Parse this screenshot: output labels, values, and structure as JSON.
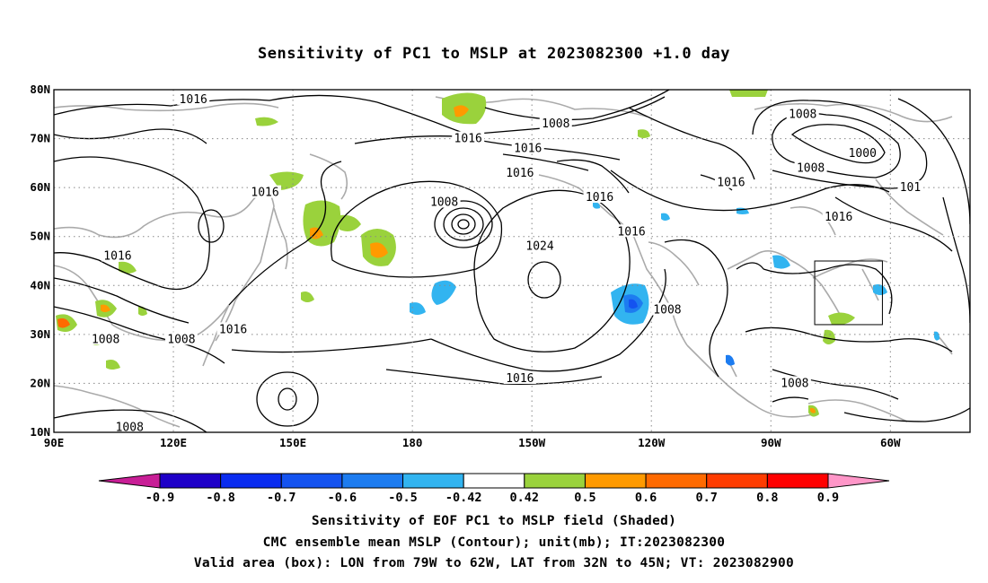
{
  "title": "Sensitivity of PC1 to MSLP at 2023082300 +1.0 day",
  "map": {
    "lat_labels": [
      "80N",
      "70N",
      "60N",
      "50N",
      "40N",
      "30N",
      "20N",
      "10N"
    ],
    "lon_labels": [
      "90E",
      "120E",
      "150E",
      "180",
      "150W",
      "120W",
      "90W",
      "60W"
    ],
    "contour_labels": [
      {
        "text": "1016",
        "lon": 125,
        "lat": 78
      },
      {
        "text": "1008",
        "lon": -144,
        "lat": 73
      },
      {
        "text": "1016",
        "lon": -166,
        "lat": 70
      },
      {
        "text": "1016",
        "lon": -151,
        "lat": 68
      },
      {
        "text": "1016",
        "lon": -153,
        "lat": 63
      },
      {
        "text": "1008",
        "lon": -172,
        "lat": 57
      },
      {
        "text": "1016",
        "lon": -133,
        "lat": 58
      },
      {
        "text": "1016",
        "lon": -100,
        "lat": 61
      },
      {
        "text": "1008",
        "lon": -82,
        "lat": 75
      },
      {
        "text": "1000",
        "lon": -67,
        "lat": 67
      },
      {
        "text": "1008",
        "lon": -80,
        "lat": 64
      },
      {
        "text": "1016",
        "lon": 143,
        "lat": 59
      },
      {
        "text": "1016",
        "lon": -73,
        "lat": 54
      },
      {
        "text": "1016",
        "lon": -125,
        "lat": 51
      },
      {
        "text": "1024",
        "lon": -148,
        "lat": 48
      },
      {
        "text": "1016",
        "lon": 106,
        "lat": 46
      },
      {
        "text": "1016",
        "lon": 135,
        "lat": 31
      },
      {
        "text": "1008",
        "lon": 103,
        "lat": 29
      },
      {
        "text": "1008",
        "lon": 122,
        "lat": 29
      },
      {
        "text": "1008",
        "lon": -116,
        "lat": 35
      },
      {
        "text": "1016",
        "lon": -153,
        "lat": 21
      },
      {
        "text": "1008",
        "lon": -84,
        "lat": 20
      },
      {
        "text": "1008",
        "lon": 109,
        "lat": 11
      },
      {
        "text": "101",
        "lon": -55,
        "lat": 60
      }
    ],
    "valid_box": {
      "lon_min": -79,
      "lon_max": -62,
      "lat_min": 32,
      "lat_max": 45
    }
  },
  "colorbar": {
    "labels": [
      "-0.9",
      "-0.8",
      "-0.7",
      "-0.6",
      "-0.5",
      "-0.42",
      "0.42",
      "0.5",
      "0.6",
      "0.7",
      "0.8",
      "0.9"
    ],
    "colors": [
      "#1e00c8",
      "#0a2cf0",
      "#1453f0",
      "#1d7cf0",
      "#32b4f0",
      "#ffffff",
      "#9ad23c",
      "#ff9a00",
      "#ff6a00",
      "#ff3c00",
      "#ff0000"
    ],
    "left_arrow_color": "#c81e96",
    "right_arrow_color": "#ff96c8"
  },
  "caption": {
    "line1": "Sensitivity of EOF PC1 to MSLP field (Shaded)",
    "line2": "CMC ensemble mean MSLP (Contour); unit(mb); IT:2023082300",
    "line3": "Valid area (box): LON from 79W to 62W, LAT from 32N to 45N; VT: 2023082900"
  }
}
